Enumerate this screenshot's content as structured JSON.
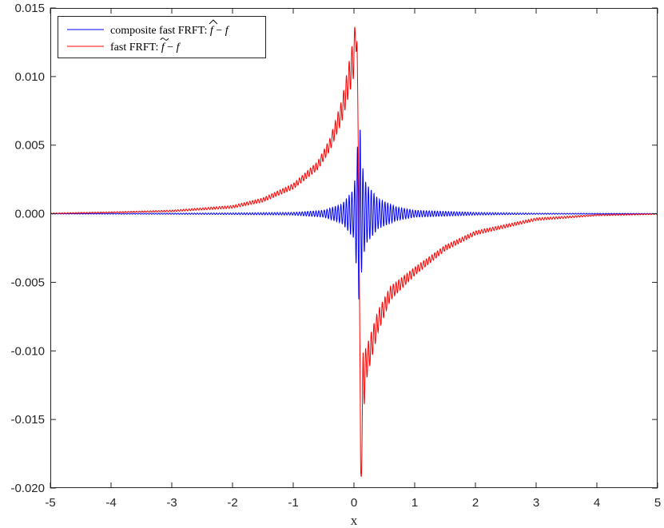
{
  "chart_data": {
    "type": "line",
    "title": "",
    "xlabel": "x",
    "ylabel": "",
    "xlim": [
      -5,
      5
    ],
    "ylim": [
      -0.02,
      0.015
    ],
    "grid": false,
    "legend_position": "top-left",
    "x_ticks": [
      -5,
      -4,
      -3,
      -2,
      -1,
      0,
      1,
      2,
      3,
      4,
      5
    ],
    "x_tick_labels": [
      "-5",
      "-4",
      "-3",
      "-2",
      "-1",
      "0",
      "1",
      "2",
      "3",
      "4",
      "5"
    ],
    "y_ticks": [
      -0.02,
      -0.015,
      -0.01,
      -0.005,
      0,
      0.005,
      0.01,
      0.015
    ],
    "y_tick_labels": [
      "-0.020",
      "-0.015",
      "-0.010",
      "-0.005",
      "0.000",
      "0.005",
      "0.010",
      "0.015"
    ],
    "series": [
      {
        "name": "composite fast FRFT: f̂ − f",
        "name_prefix": "composite fast FRFT: ",
        "color": "#0000ff",
        "style": "oscillating",
        "x": [
          -5,
          -3,
          -2,
          -1,
          -0.5,
          -0.2,
          0,
          0.05,
          0.08,
          0.1,
          0.12,
          0.15,
          0.2,
          0.4,
          0.7,
          1,
          2,
          3,
          5
        ],
        "envelope": [
          2e-05,
          4e-05,
          6e-05,
          0.0001,
          0.00025,
          0.0007,
          0.0018,
          0.0045,
          0.0063,
          0.0064,
          0.0045,
          0.0032,
          0.0022,
          0.0011,
          0.0005,
          0.00025,
          0.0001,
          4e-05,
          2e-05
        ]
      },
      {
        "name": "fast FRFT: f̃ − f",
        "name_prefix": "fast FRFT: ",
        "color": "#ff0000",
        "style": "oscillating",
        "x": [
          -5,
          -4,
          -3,
          -2,
          -1.5,
          -1,
          -0.6,
          -0.4,
          -0.2,
          0,
          0.03,
          0.05,
          0.08,
          0.11,
          0.15,
          0.2,
          0.4,
          0.6,
          1,
          1.5,
          2,
          3,
          4,
          5
        ],
        "y": [
          2e-05,
          0.0001,
          0.0002,
          0.0005,
          0.001,
          0.002,
          0.0035,
          0.005,
          0.0075,
          0.0115,
          0.0133,
          0.012,
          0.002,
          -0.0196,
          -0.0125,
          -0.011,
          -0.0078,
          -0.0058,
          -0.0042,
          -0.0025,
          -0.0014,
          -0.0004,
          -0.0001,
          -2e-05
        ],
        "ripple": [
          3e-05,
          4e-05,
          6e-05,
          0.0001,
          0.00015,
          0.0002,
          0.0003,
          0.00045,
          0.0008,
          0.0015,
          0.0012,
          0.001,
          0.0005,
          0.0015,
          0.0025,
          0.0012,
          0.0008,
          0.0005,
          0.0003,
          0.0002,
          0.00015,
          0.0001,
          5e-05,
          3e-05
        ]
      }
    ]
  }
}
